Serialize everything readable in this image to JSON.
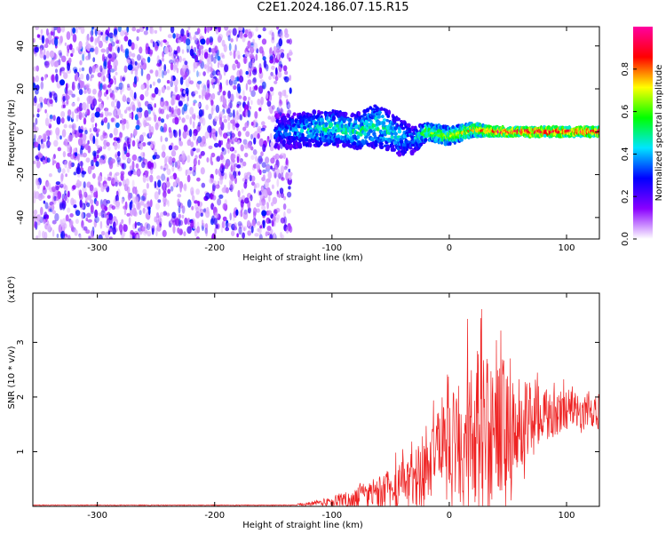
{
  "title": "C2E1.2024.186.07.15.R15",
  "chart_data": [
    {
      "type": "heatmap",
      "xlabel": "Height of straight line (km)",
      "ylabel": "Frequency (Hz)",
      "xlim": [
        -355,
        128
      ],
      "ylim": [
        -50,
        49
      ],
      "xticks": [
        -300,
        -200,
        -100,
        0,
        100
      ],
      "xtick_labels": [
        "-300",
        "-200",
        "-100",
        "0",
        "100"
      ],
      "yticks": [
        -40,
        -20,
        0,
        20,
        40
      ],
      "ytick_labels": [
        "-40",
        "-20",
        "0",
        "20",
        "40"
      ],
      "colorbar": {
        "label": "Normalized spectral amplitude",
        "range": [
          0,
          1
        ],
        "ticks": [
          0.0,
          0.2,
          0.4,
          0.6,
          0.8
        ],
        "tick_labels": [
          "0.0",
          "0.2",
          "0.4",
          "0.6",
          "0.8"
        ],
        "colors": [
          "#ffffff",
          "#8a00ff",
          "#0000ff",
          "#00e5ff",
          "#00ff00",
          "#ffff00",
          "#ff0000",
          "#ff00a0"
        ]
      },
      "noise_region_x": [
        -355,
        -135
      ],
      "signal_band": [
        {
          "x": -140,
          "center": 0,
          "halfwidth": 8,
          "amplitude": 0.35
        },
        {
          "x": -120,
          "center": 1,
          "halfwidth": 8,
          "amplitude": 0.45
        },
        {
          "x": -100,
          "center": 2,
          "halfwidth": 8,
          "amplitude": 0.5
        },
        {
          "x": -80,
          "center": 0,
          "halfwidth": 8,
          "amplitude": 0.5
        },
        {
          "x": -60,
          "center": 3,
          "halfwidth": 10,
          "amplitude": 0.5
        },
        {
          "x": -45,
          "center": -2,
          "halfwidth": 9,
          "amplitude": 0.45
        },
        {
          "x": -30,
          "center": -4,
          "halfwidth": 6,
          "amplitude": 0.4
        },
        {
          "x": -20,
          "center": 0,
          "halfwidth": 4,
          "amplitude": 0.6
        },
        {
          "x": 0,
          "center": -2,
          "halfwidth": 4,
          "amplitude": 0.65
        },
        {
          "x": 20,
          "center": 1,
          "halfwidth": 3,
          "amplitude": 0.75
        },
        {
          "x": 40,
          "center": 0,
          "halfwidth": 2,
          "amplitude": 0.9
        },
        {
          "x": 80,
          "center": 0,
          "halfwidth": 2,
          "amplitude": 0.95
        },
        {
          "x": 125,
          "center": 0,
          "halfwidth": 2,
          "amplitude": 0.9
        }
      ]
    },
    {
      "type": "line",
      "xlabel": "Height of straight line (km)",
      "ylabel": "SNR (10 * v/v)",
      "multiplier_label": "(x10⁴)",
      "xlim": [
        -355,
        128
      ],
      "ylim": [
        0,
        3.9
      ],
      "xticks": [
        -300,
        -200,
        -100,
        0,
        100
      ],
      "xtick_labels": [
        "-300",
        "-200",
        "-100",
        "0",
        "100"
      ],
      "yticks": [
        1,
        2,
        3
      ],
      "ytick_labels": [
        "1",
        "2",
        "3"
      ],
      "series": [
        {
          "color": "#ee2222",
          "envelope": {
            "x": [
              -355,
              -130,
              -115,
              -100,
              -80,
              -60,
              -40,
              -25,
              -15,
              -10,
              0,
              10,
              20,
              30,
              40,
              50,
              60,
              70,
              80,
              90,
              100,
              110,
              120,
              128
            ],
            "base": [
              0.02,
              0.03,
              0.05,
              0.08,
              0.15,
              0.25,
              0.4,
              0.6,
              0.9,
              1.1,
              1.2,
              1.25,
              1.3,
              1.4,
              1.45,
              1.5,
              1.55,
              1.6,
              1.7,
              1.7,
              1.75,
              1.75,
              1.75,
              1.7
            ],
            "amp": [
              0.01,
              0.02,
              0.05,
              0.1,
              0.2,
              0.3,
              0.45,
              0.6,
              0.7,
              0.6,
              0.8,
              1.2,
              1.5,
              1.6,
              1.4,
              1.1,
              0.8,
              0.6,
              0.5,
              0.45,
              0.4,
              0.35,
              0.3,
              0.3
            ]
          }
        }
      ]
    }
  ]
}
